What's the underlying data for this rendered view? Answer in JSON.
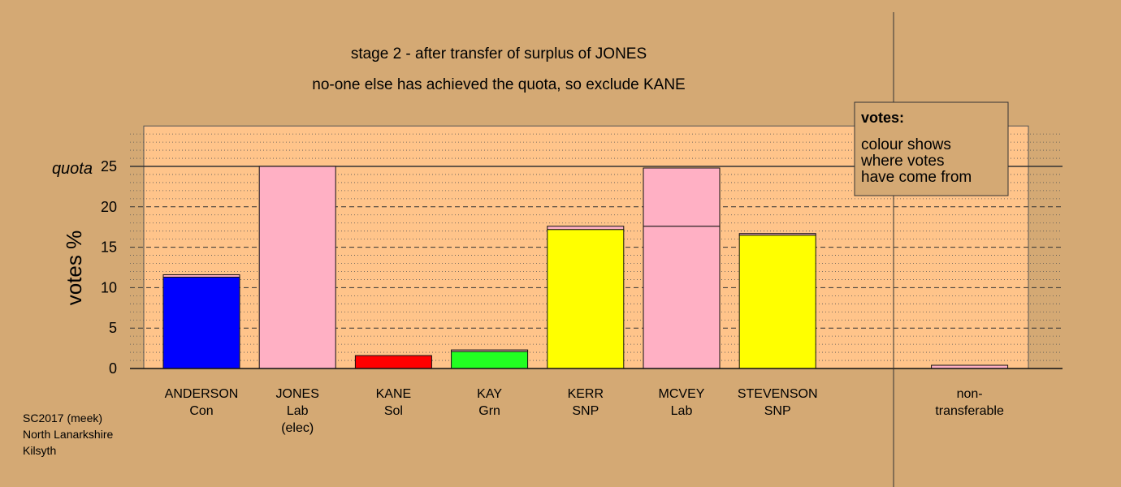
{
  "chart_data": {
    "type": "bar",
    "title": "stage 2 - after transfer of surplus of JONES",
    "subtitle": "no-one else has achieved the quota, so exclude KANE",
    "ylabel": "votes %",
    "ylim": [
      0,
      30
    ],
    "yticks": [
      "0",
      "5",
      "10",
      "15",
      "20",
      "25"
    ],
    "quota": {
      "label": "quota",
      "value": 25
    },
    "categories": [
      {
        "name": "ANDERSON",
        "party": "Con",
        "note": ""
      },
      {
        "name": "JONES",
        "party": "Lab",
        "note": "(elec)"
      },
      {
        "name": "KANE",
        "party": "Sol",
        "note": ""
      },
      {
        "name": "KAY",
        "party": "Grn",
        "note": ""
      },
      {
        "name": "KERR",
        "party": "SNP",
        "note": ""
      },
      {
        "name": "MCVEY",
        "party": "Lab",
        "note": ""
      },
      {
        "name": "STEVENSON",
        "party": "SNP",
        "note": ""
      },
      {
        "name": "",
        "party": "",
        "note": ""
      },
      {
        "name": "non-",
        "party": "transferable",
        "note": ""
      }
    ],
    "bars": [
      {
        "segments": [
          {
            "value": 11.3,
            "color": "#0000ff"
          },
          {
            "value": 0.3,
            "color": "#ffb0c4"
          }
        ]
      },
      {
        "segments": [
          {
            "value": 25.0,
            "color": "#ffb0c4"
          }
        ]
      },
      {
        "segments": [
          {
            "value": 1.6,
            "color": "#ff0000"
          }
        ]
      },
      {
        "segments": [
          {
            "value": 2.1,
            "color": "#22ff22"
          },
          {
            "value": 0.2,
            "color": "#ffb0c4"
          }
        ]
      },
      {
        "segments": [
          {
            "value": 17.2,
            "color": "#ffff00"
          },
          {
            "value": 0.4,
            "color": "#ffb0c4"
          }
        ]
      },
      {
        "segments": [
          {
            "value": 17.6,
            "color": "#ffb0c4"
          },
          {
            "value": 7.2,
            "color": "#ffb0c4"
          }
        ]
      },
      {
        "segments": [
          {
            "value": 16.5,
            "color": "#ffff00"
          },
          {
            "value": 0.2,
            "color": "#ffb0c4"
          }
        ]
      },
      {
        "segments": []
      },
      {
        "segments": [
          {
            "value": 0.4,
            "color": "#ffb0c4"
          }
        ]
      }
    ],
    "legend": {
      "title": "votes:",
      "lines": [
        "colour shows",
        "where votes",
        "have come from"
      ],
      "placement": "top-right"
    }
  },
  "footer": {
    "lines": [
      "SC2017 (meek)",
      "North Lanarkshire",
      "Kilsyth"
    ]
  },
  "colors": {
    "background": "#d4a974",
    "plot_background": "#ffc48a"
  }
}
